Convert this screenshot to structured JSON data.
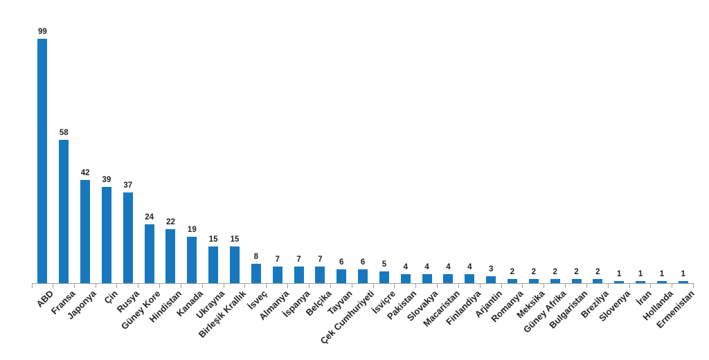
{
  "chart_data": {
    "type": "bar",
    "title": "",
    "xlabel": "",
    "ylabel": "",
    "ylim": [
      0,
      100
    ],
    "grid": false,
    "legend": false,
    "data_labels_shown": true,
    "bar_color": "#1878BE",
    "axis_color": "#9E9E9E",
    "text_color": "#1F1F1F",
    "categories": [
      "ABD",
      "Fransa",
      "Japonya",
      "Çin",
      "Rusya",
      "Güney Kore",
      "Hindistan",
      "Kanada",
      "Ukrayna",
      "Birleşik Krallık",
      "İsveç",
      "Almanya",
      "İspanya",
      "Belçika",
      "Tayvan",
      "Çek Cumhuriyeti",
      "İsviçre",
      "Pakistan",
      "Slovakya",
      "Macaristan",
      "Finlandiya",
      "Arjantin",
      "Romanya",
      "Meksika",
      "Güney Afrika",
      "Bulgaristan",
      "Brezilya",
      "Slovenya",
      "İran",
      "Hollanda",
      "Ermenistan"
    ],
    "values": [
      99,
      58,
      42,
      39,
      37,
      24,
      22,
      19,
      15,
      15,
      8,
      7,
      7,
      7,
      6,
      6,
      5,
      4,
      4,
      4,
      4,
      3,
      2,
      2,
      2,
      2,
      2,
      1,
      1,
      1,
      1
    ]
  }
}
